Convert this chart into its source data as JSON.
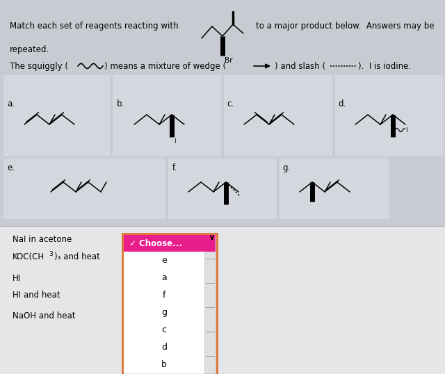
{
  "bg_color": "#c8ccd2",
  "panel_color": "#d4d8de",
  "bottom_bg": "#e4e6e8",
  "title_text": "Match each set of reagents reacting with",
  "title2_text": "to a major product below.  Answers may be",
  "repeated_text": "repeated.",
  "squiggly_line1": "The squiggly (",
  "squiggly_line2": ") means a mixture of wedge (",
  "squiggly_line3": ") and slash (",
  "squiggly_line4": ").  I is iodine.",
  "reagents": [
    "NaI in acetone",
    "KOC(CH3)3 and heat",
    "HI",
    "HI and heat",
    "NaOH and heat"
  ],
  "dropdown_header": "✓ Choose...",
  "dropdown_items": [
    "e",
    "a",
    "f",
    "g",
    "c",
    "d",
    "b"
  ],
  "dropdown_header_bg": "#e91e8c",
  "dropdown_border": "#e07030",
  "dropdown_header_color": "#ffffff",
  "dropdown_bg": "#ffffff",
  "labels": [
    "a.",
    "b.",
    "c.",
    "d.",
    "e.",
    "f.",
    "g."
  ]
}
